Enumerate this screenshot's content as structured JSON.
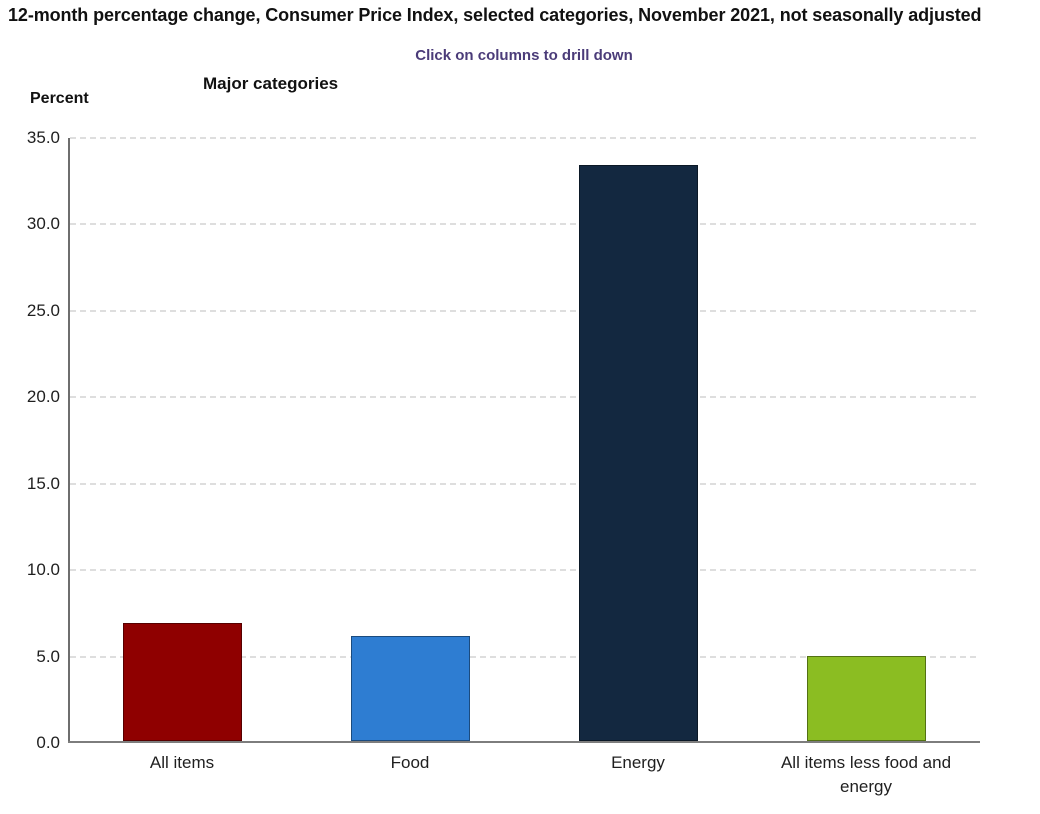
{
  "page": {
    "title": "12-month percentage change, Consumer Price Index, selected categories, November 2021, not seasonally adjusted",
    "hint": "Click on columns to drill down",
    "hint_color": "#4b3c79"
  },
  "chart_data": {
    "type": "bar",
    "title": "Major categories",
    "ylabel": "Percent",
    "categories": [
      "All items",
      "Food",
      "Energy",
      "All items less food and energy"
    ],
    "values": [
      6.8,
      6.1,
      33.3,
      4.9
    ],
    "bar_colors": [
      "#8f0000",
      "#2e7dd2",
      "#132840",
      "#8bbd22"
    ],
    "ylim": [
      0,
      35
    ],
    "ytick_step": 5,
    "ytick_labels": [
      "0.0",
      "5.0",
      "10.0",
      "15.0",
      "20.0",
      "25.0",
      "30.0",
      "35.0"
    ],
    "grid": "horizontal-dashed",
    "legend": "none"
  }
}
